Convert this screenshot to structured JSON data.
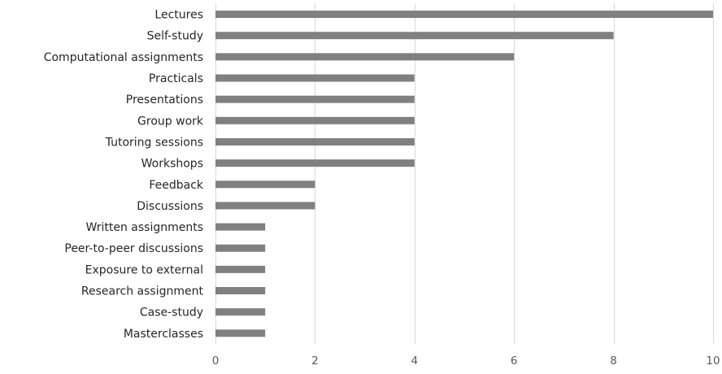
{
  "chart_data": {
    "type": "bar",
    "orientation": "horizontal",
    "categories": [
      "Lectures",
      "Self-study",
      "Computational assignments",
      "Practicals",
      "Presentations",
      "Group work",
      "Tutoring sessions",
      "Workshops",
      "Feedback",
      "Discussions",
      "Written assignments",
      "Peer-to-peer discussions",
      "Exposure to external",
      "Research assignment",
      "Case-study",
      "Masterclasses"
    ],
    "values": [
      10,
      8,
      6,
      4,
      4,
      4,
      4,
      4,
      2,
      2,
      1,
      1,
      1,
      1,
      1,
      1
    ],
    "xlim": [
      0,
      10
    ],
    "xticks": [
      "0",
      "2",
      "4",
      "6",
      "8",
      "10"
    ],
    "title": "",
    "xlabel": "",
    "ylabel": "",
    "grid": "vertical",
    "legend": "none",
    "bar_color": "#808080",
    "grid_color": "#d9d9d9"
  }
}
